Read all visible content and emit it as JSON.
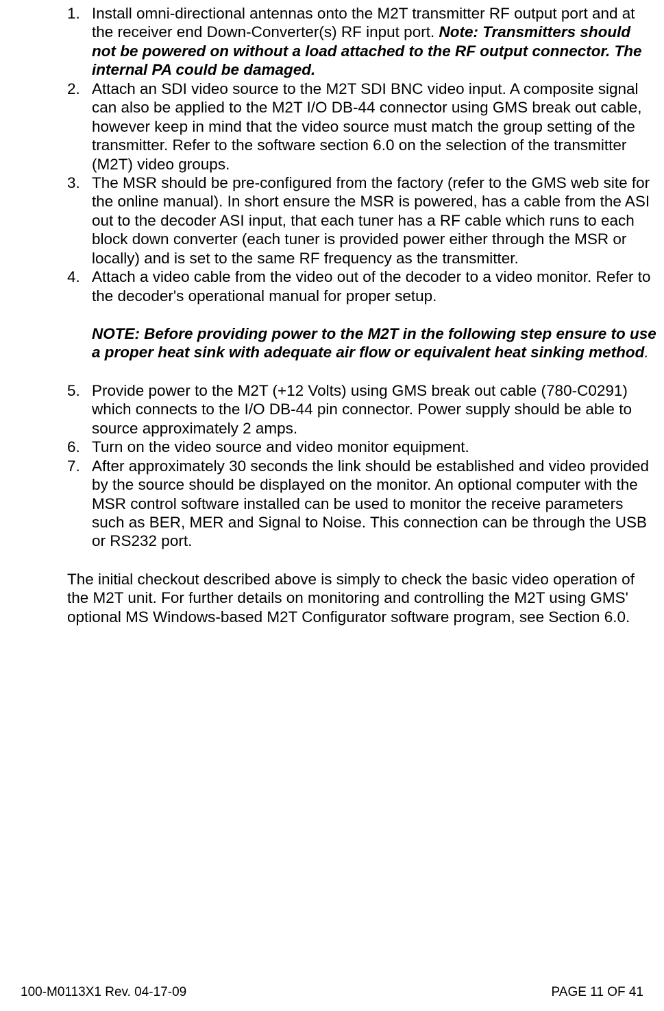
{
  "list": {
    "item1": {
      "num": "1.",
      "text_a": "Install omni-directional antennas onto the M2T transmitter RF output port and at the receiver end Down-Converter(s) RF input port.  ",
      "text_b": "Note:  Transmitters should not be powered on without a load attached to the RF output connector. The internal PA could be damaged."
    },
    "item2": {
      "num": "2.",
      "text": "Attach an SDI video source to the M2T SDI BNC video input. A composite signal can also be applied to the M2T I/O DB-44 connector using GMS break out cable, however keep in mind that the video source must match the group setting of the transmitter.  Refer to the software section 6.0 on the selection of the transmitter (M2T) video groups."
    },
    "item3": {
      "num": "3.",
      "text": "The MSR should be pre-configured from the factory (refer to the GMS web site for the online manual).  In short ensure the MSR is powered, has a cable from the ASI out to the decoder ASI input, that each tuner has a RF cable which runs to each block down converter (each tuner is provided power either through the MSR or locally) and is set to the same RF frequency as the transmitter."
    },
    "item4": {
      "num": "4.",
      "text": "Attach a video cable from the video out of the decoder to a video monitor.  Refer to the decoder's operational manual for proper setup."
    },
    "item5": {
      "num": "5.",
      "text": "Provide power to the M2T (+12 Volts) using GMS break out cable (780-C0291) which connects to the I/O DB-44 pin connector.  Power supply should be able to source approximately 2 amps."
    },
    "item6": {
      "num": "6.",
      "text": "Turn on the video source and video monitor equipment."
    },
    "item7": {
      "num": "7.",
      "text": "After approximately 30 seconds the link should be established and video provided by the source should be displayed on the monitor. An optional computer with the MSR control software installed can be used to monitor the receive parameters such as BER, MER and Signal to Noise. This connection can be through the USB or RS232 port."
    }
  },
  "note": {
    "text_a": "NOTE:  Before providing power to the M2T in the following step ensure to use a proper heat sink with adequate air flow or equivalent heat sinking method",
    "text_b": "."
  },
  "closing": "The initial checkout described above is simply to check the basic video operation of the M2T unit.  For further details on monitoring and controlling the M2T using GMS' optional MS Windows-based M2T Configurator software program, see Section 6.0.",
  "footer": {
    "left": "100-M0113X1 Rev. 04-17-09",
    "right": "PAGE 11 OF 41"
  }
}
